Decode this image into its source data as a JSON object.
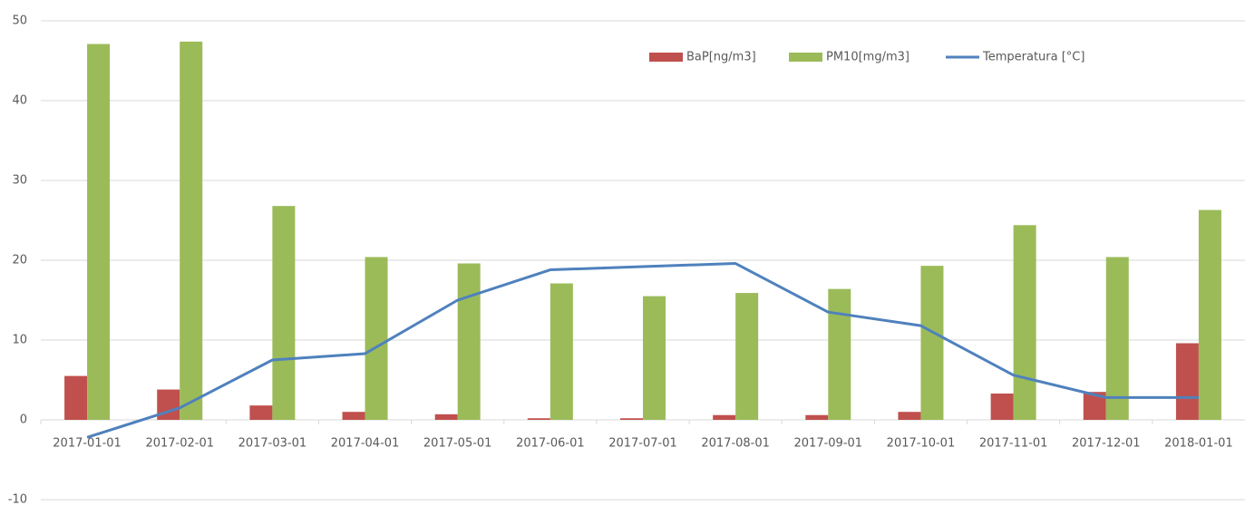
{
  "chart_data": {
    "type": "bar",
    "categories": [
      "2017-01-01",
      "2017-02-01",
      "2017-03-01",
      "2017-04-01",
      "2017-05-01",
      "2017-06-01",
      "2017-07-01",
      "2017-08-01",
      "2017-09-01",
      "2017-10-01",
      "2017-11-01",
      "2017-12-01",
      "2018-01-01"
    ],
    "series": [
      {
        "name": "BaP[ng/m3]",
        "type": "bar",
        "color": "#c0504d",
        "values": [
          5.5,
          3.8,
          1.8,
          1.0,
          0.7,
          0.2,
          0.2,
          0.6,
          0.6,
          1.0,
          3.3,
          3.5,
          9.6
        ]
      },
      {
        "name": "PM10[mg/m3]",
        "type": "bar",
        "color": "#9bbb59",
        "values": [
          47.1,
          47.4,
          26.8,
          20.4,
          19.6,
          17.1,
          15.5,
          15.9,
          16.4,
          19.3,
          24.4,
          20.4,
          26.3
        ]
      },
      {
        "name": "Temperatura [°C]",
        "type": "line",
        "color": "#4f81bd",
        "values": [
          -2.2,
          1.5,
          7.5,
          8.3,
          15.0,
          18.8,
          19.2,
          19.6,
          13.5,
          11.8,
          5.6,
          2.8,
          2.8
        ]
      }
    ],
    "ylim": [
      -10,
      50
    ],
    "yticks": [
      -10,
      0,
      10,
      20,
      30,
      40,
      50
    ],
    "grid": true,
    "legend": "top-right"
  }
}
